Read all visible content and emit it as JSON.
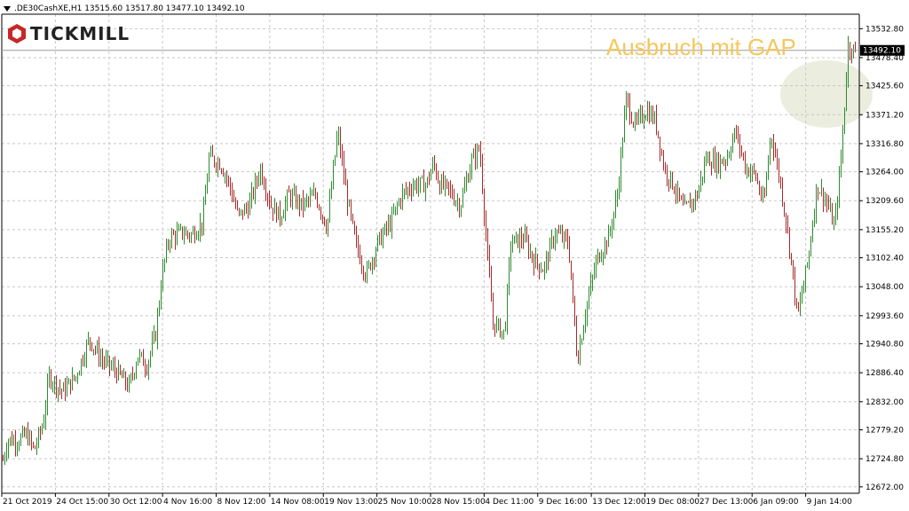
{
  "header": {
    "symbol_line": ".DE30CashXE,H1  13515.60 13517.80 13477.10 13492.10"
  },
  "logo": {
    "text": "TICKMILL"
  },
  "annotation": {
    "text": "Ausbruch mit GAP"
  },
  "colors": {
    "up": "#2e8b2e",
    "down": "#a52a2a",
    "grid": "#c8c8c8",
    "highlight": "#e8ead8",
    "annotation": "#f5c75a",
    "price_line": "#9a9a9a"
  },
  "chart_data": {
    "type": "ohlc",
    "instrument": ".DE30CashXE",
    "timeframe": "H1",
    "last_bar": {
      "open": 13515.6,
      "high": 13517.8,
      "low": 13477.1,
      "close": 13492.1
    },
    "current_price_label": "13492.10",
    "ylim": [
      12660,
      13560
    ],
    "y_ticks": [
      13532.8,
      13478.4,
      13425.6,
      13371.2,
      13316.8,
      13264.0,
      13209.6,
      13155.2,
      13102.4,
      13048.0,
      12993.6,
      12940.8,
      12886.4,
      12832.0,
      12779.2,
      12724.8,
      12672.0
    ],
    "x_tick_labels": [
      "21 Oct 2019",
      "24 Oct 15:00",
      "30 Oct 12:00",
      "4 Nov 16:00",
      "8 Nov 12:00",
      "14 Nov 08:00",
      "19 Nov 13:00",
      "25 Nov 10:00",
      "28 Nov 15:00",
      "4 Dec 11:00",
      "9 Dec 16:00",
      "13 Dec 12:00",
      "19 Dec 08:00",
      "27 Dec 13:00",
      "6 Jan 09:00",
      "9 Jan 14:00"
    ],
    "grid": true,
    "price_path": [
      [
        0,
        12700
      ],
      [
        8,
        12760
      ],
      [
        20,
        12760
      ],
      [
        30,
        12770
      ],
      [
        38,
        12740
      ],
      [
        48,
        12790
      ],
      [
        55,
        12880
      ],
      [
        70,
        12850
      ],
      [
        85,
        12880
      ],
      [
        100,
        12950
      ],
      [
        115,
        12910
      ],
      [
        130,
        12890
      ],
      [
        145,
        12860
      ],
      [
        155,
        12920
      ],
      [
        165,
        12900
      ],
      [
        175,
        12960
      ],
      [
        182,
        13070
      ],
      [
        190,
        13140
      ],
      [
        205,
        13150
      ],
      [
        215,
        13145
      ],
      [
        228,
        13170
      ],
      [
        235,
        13290
      ],
      [
        248,
        13280
      ],
      [
        258,
        13240
      ],
      [
        268,
        13180
      ],
      [
        280,
        13200
      ],
      [
        293,
        13270
      ],
      [
        305,
        13200
      ],
      [
        315,
        13180
      ],
      [
        325,
        13220
      ],
      [
        340,
        13200
      ],
      [
        355,
        13220
      ],
      [
        368,
        13160
      ],
      [
        380,
        13340
      ],
      [
        390,
        13220
      ],
      [
        400,
        13130
      ],
      [
        412,
        13070
      ],
      [
        425,
        13130
      ],
      [
        440,
        13170
      ],
      [
        452,
        13220
      ],
      [
        465,
        13240
      ],
      [
        480,
        13240
      ],
      [
        488,
        13280
      ],
      [
        495,
        13240
      ],
      [
        505,
        13230
      ],
      [
        518,
        13200
      ],
      [
        530,
        13280
      ],
      [
        540,
        13310
      ],
      [
        548,
        13120
      ],
      [
        555,
        12980
      ],
      [
        568,
        12960
      ],
      [
        575,
        13130
      ],
      [
        590,
        13140
      ],
      [
        600,
        13100
      ],
      [
        612,
        13080
      ],
      [
        625,
        13150
      ],
      [
        640,
        13130
      ],
      [
        650,
        12910
      ],
      [
        660,
        13010
      ],
      [
        672,
        13100
      ],
      [
        685,
        13140
      ],
      [
        695,
        13220
      ],
      [
        705,
        13400
      ],
      [
        715,
        13350
      ],
      [
        728,
        13380
      ],
      [
        738,
        13360
      ],
      [
        748,
        13270
      ],
      [
        758,
        13240
      ],
      [
        770,
        13190
      ],
      [
        785,
        13220
      ],
      [
        795,
        13290
      ],
      [
        808,
        13280
      ],
      [
        818,
        13290
      ],
      [
        828,
        13340
      ],
      [
        840,
        13270
      ],
      [
        850,
        13260
      ],
      [
        860,
        13200
      ],
      [
        868,
        13340
      ],
      [
        878,
        13250
      ],
      [
        888,
        13140
      ],
      [
        898,
        12990
      ],
      [
        910,
        13100
      ],
      [
        920,
        13240
      ],
      [
        930,
        13210
      ],
      [
        940,
        13160
      ],
      [
        948,
        13310
      ],
      [
        955,
        13500
      ],
      [
        965,
        13490
      ]
    ]
  }
}
